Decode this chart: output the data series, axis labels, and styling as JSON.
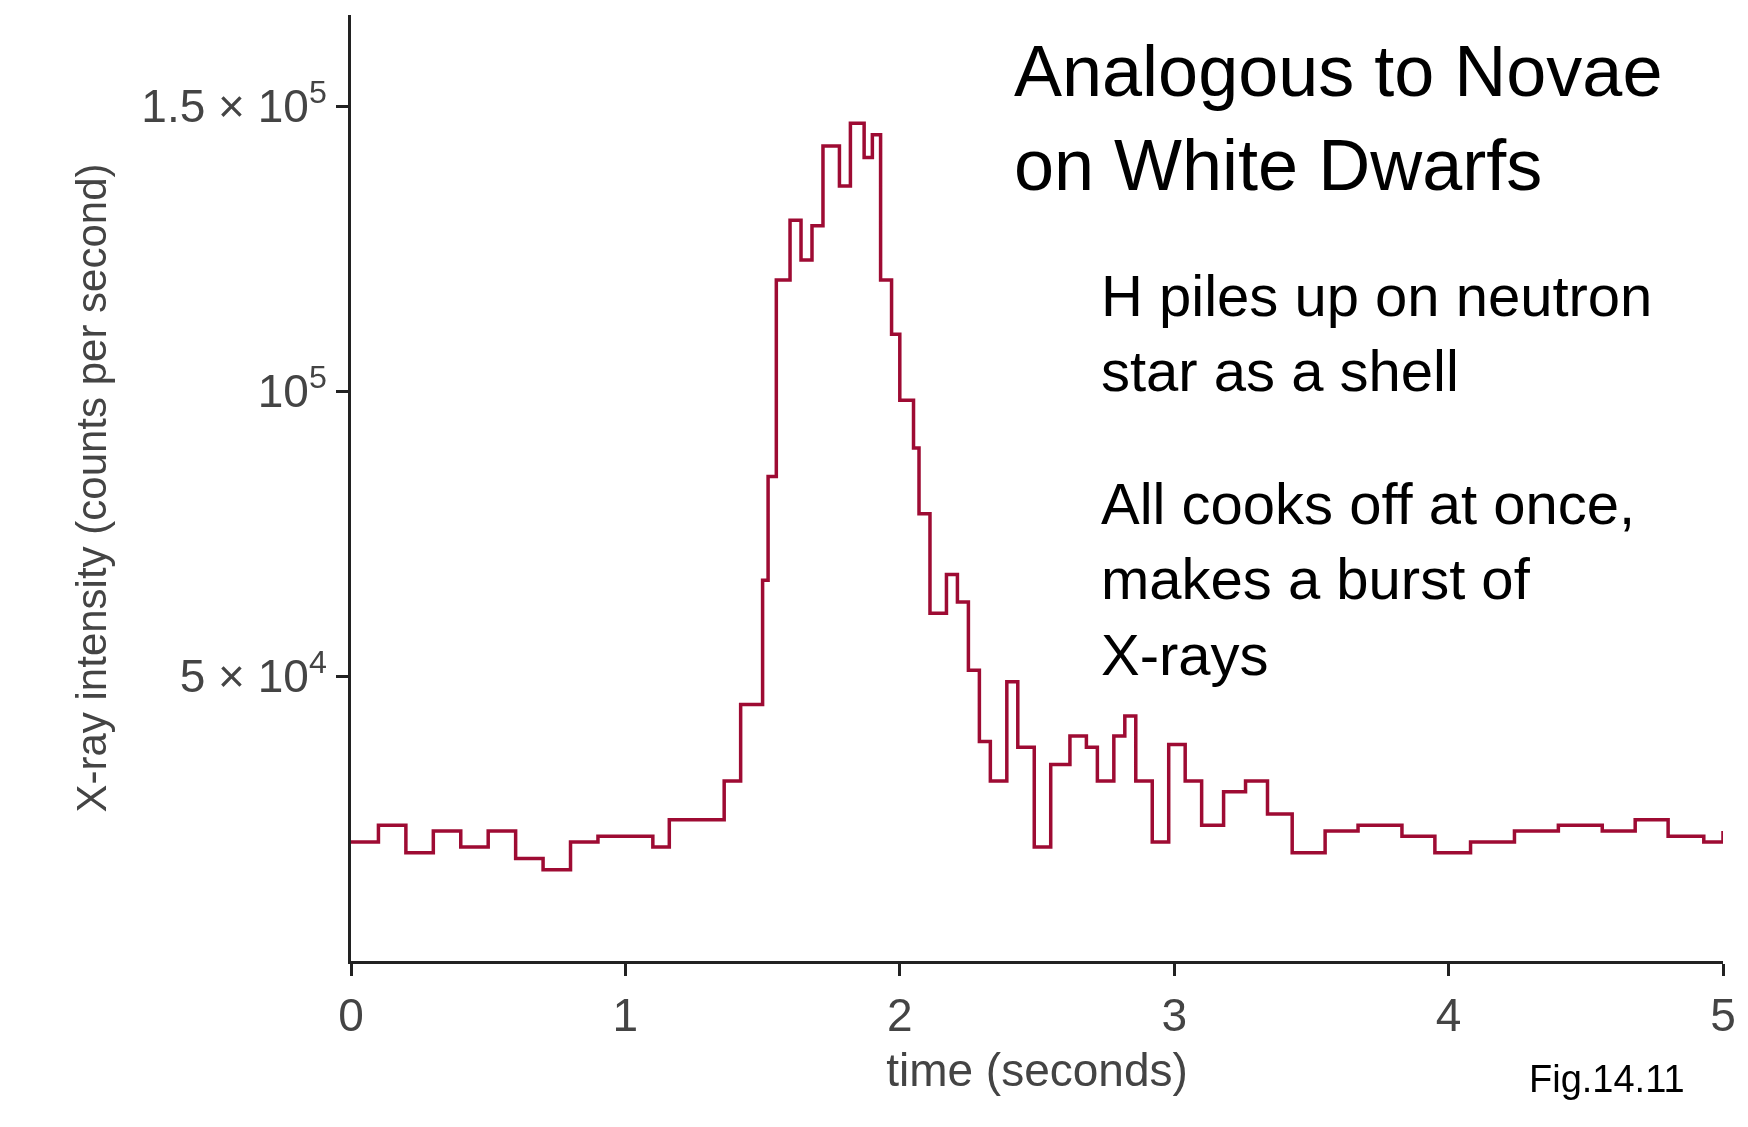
{
  "chart_data": {
    "type": "step",
    "xlabel": "time (seconds)",
    "ylabel": "X-ray intensity (counts per second)",
    "x": [
      0,
      0.1,
      0.2,
      0.3,
      0.4,
      0.5,
      0.6,
      0.7,
      0.8,
      0.9,
      1.0,
      1.1,
      1.16,
      1.36,
      1.42,
      1.5,
      1.52,
      1.55,
      1.6,
      1.64,
      1.68,
      1.72,
      1.78,
      1.82,
      1.87,
      1.9,
      1.93,
      1.97,
      2.0,
      2.05,
      2.07,
      2.11,
      2.17,
      2.21,
      2.25,
      2.29,
      2.33,
      2.39,
      2.43,
      2.49,
      2.55,
      2.62,
      2.68,
      2.72,
      2.78,
      2.82,
      2.86,
      2.92,
      2.98,
      3.04,
      3.1,
      3.18,
      3.26,
      3.34,
      3.43,
      3.55,
      3.67,
      3.83,
      3.95,
      4.08,
      4.24,
      4.4,
      4.56,
      4.68,
      4.8,
      4.93,
      5.0
    ],
    "series": [
      {
        "color": "#9e0b33",
        "values": [
          20900,
          23800,
          19000,
          22800,
          20000,
          22800,
          18000,
          16000,
          20900,
          21900,
          21900,
          20000,
          24800,
          31600,
          45000,
          66800,
          85000,
          119500,
          130000,
          123000,
          129000,
          143000,
          136000,
          147000,
          141000,
          145000,
          119500,
          110000,
          98400,
          90000,
          78500,
          61000,
          67800,
          63000,
          51000,
          38500,
          31600,
          49000,
          37500,
          20000,
          34500,
          39500,
          37500,
          31600,
          39500,
          43000,
          31600,
          20900,
          38000,
          31600,
          23800,
          29700,
          31600,
          25800,
          19000,
          22800,
          23800,
          21900,
          19000,
          20900,
          22800,
          23800,
          22800,
          24800,
          21900,
          20900,
          22800
        ]
      }
    ],
    "xlim": [
      0,
      5
    ],
    "xticks": [
      0,
      1,
      2,
      3,
      4,
      5
    ],
    "ylim": [
      0,
      166000
    ],
    "yticks": [
      {
        "value": 50000,
        "label": "5 × 10$^{4}$"
      },
      {
        "value": 100000,
        "label": "10$^{5}$"
      },
      {
        "value": 150000,
        "label": "1.5 × 10$^{5}$"
      }
    ],
    "annotations": [
      "Analogous to Novae on White Dwarfs",
      "H piles up on neutron star as a shell",
      "All cooks off at once, makes a burst of X-rays",
      "Fig.14.11"
    ]
  }
}
